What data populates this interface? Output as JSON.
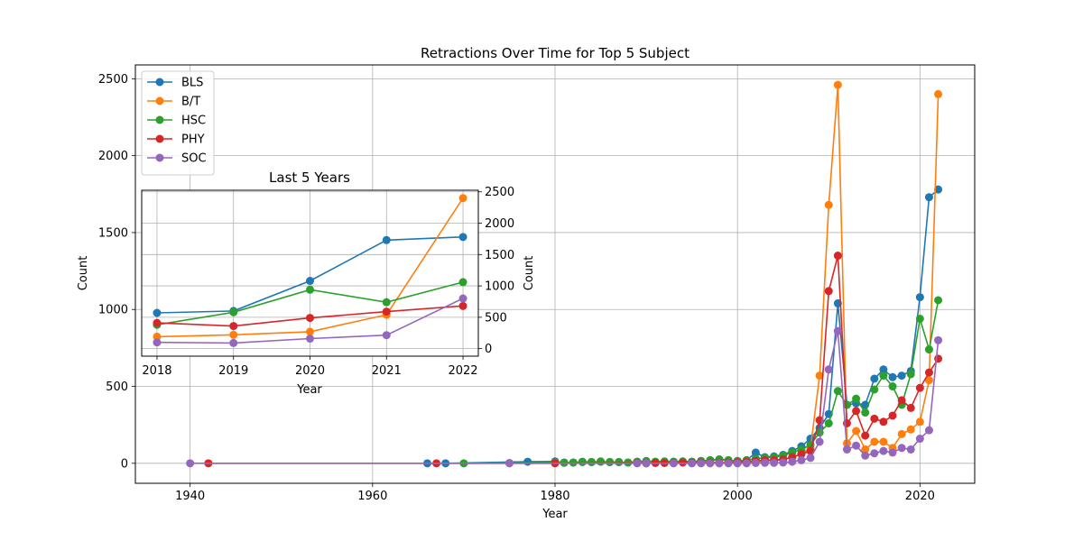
{
  "chart_data": [
    {
      "type": "line",
      "title": "Retractions Over Time for Top 5 Subject",
      "xlabel": "Year",
      "ylabel": "Count",
      "xlim": [
        1934,
        2026
      ],
      "ylim": [
        -130,
        2590
      ],
      "xticks": [
        1940,
        1960,
        1980,
        2000,
        2020
      ],
      "yticks": [
        0,
        500,
        1000,
        1500,
        2000,
        2500
      ],
      "grid": true,
      "legend_position": "upper-left",
      "series": [
        {
          "name": "BLS",
          "color": "#1f77b4",
          "points": [
            [
              1966,
              0
            ],
            [
              1968,
              0
            ],
            [
              1977,
              10
            ],
            [
              1980,
              12
            ],
            [
              1981,
              5
            ],
            [
              1982,
              5
            ],
            [
              1983,
              10
            ],
            [
              1984,
              8
            ],
            [
              1985,
              12
            ],
            [
              1986,
              8
            ],
            [
              1987,
              8
            ],
            [
              1988,
              5
            ],
            [
              1989,
              10
            ],
            [
              1990,
              15
            ],
            [
              1991,
              10
            ],
            [
              1992,
              12
            ],
            [
              1993,
              10
            ],
            [
              1994,
              12
            ],
            [
              1995,
              10
            ],
            [
              1996,
              15
            ],
            [
              1997,
              20
            ],
            [
              1998,
              25
            ],
            [
              1999,
              20
            ],
            [
              2000,
              15
            ],
            [
              2001,
              20
            ],
            [
              2002,
              70
            ],
            [
              2003,
              40
            ],
            [
              2004,
              45
            ],
            [
              2005,
              55
            ],
            [
              2006,
              80
            ],
            [
              2007,
              110
            ],
            [
              2008,
              160
            ],
            [
              2009,
              230
            ],
            [
              2010,
              320
            ],
            [
              2011,
              1040
            ],
            [
              2012,
              380
            ],
            [
              2013,
              390
            ],
            [
              2014,
              380
            ],
            [
              2015,
              550
            ],
            [
              2016,
              610
            ],
            [
              2017,
              560
            ],
            [
              2018,
              570
            ],
            [
              2019,
              600
            ],
            [
              2020,
              1080
            ],
            [
              2021,
              1730
            ],
            [
              2022,
              1780
            ]
          ]
        },
        {
          "name": "B/T",
          "color": "#ff7f0e",
          "points": [
            [
              1980,
              5
            ],
            [
              1990,
              3
            ],
            [
              1995,
              5
            ],
            [
              2000,
              5
            ],
            [
              2002,
              10
            ],
            [
              2003,
              15
            ],
            [
              2004,
              20
            ],
            [
              2005,
              25
            ],
            [
              2006,
              40
            ],
            [
              2007,
              60
            ],
            [
              2008,
              100
            ],
            [
              2009,
              570
            ],
            [
              2010,
              1680
            ],
            [
              2011,
              2460
            ],
            [
              2012,
              130
            ],
            [
              2013,
              210
            ],
            [
              2014,
              90
            ],
            [
              2015,
              140
            ],
            [
              2016,
              140
            ],
            [
              2017,
              100
            ],
            [
              2018,
              190
            ],
            [
              2019,
              220
            ],
            [
              2020,
              270
            ],
            [
              2021,
              540
            ],
            [
              2022,
              2400
            ]
          ]
        },
        {
          "name": "HSC",
          "color": "#2ca02c",
          "points": [
            [
              1970,
              0
            ],
            [
              1975,
              2
            ],
            [
              1980,
              5
            ],
            [
              1981,
              3
            ],
            [
              1982,
              5
            ],
            [
              1983,
              8
            ],
            [
              1984,
              8
            ],
            [
              1985,
              10
            ],
            [
              1986,
              8
            ],
            [
              1987,
              8
            ],
            [
              1988,
              5
            ],
            [
              1989,
              10
            ],
            [
              1990,
              12
            ],
            [
              1991,
              10
            ],
            [
              1992,
              10
            ],
            [
              1993,
              10
            ],
            [
              1994,
              12
            ],
            [
              1995,
              10
            ],
            [
              1996,
              15
            ],
            [
              1997,
              20
            ],
            [
              1998,
              25
            ],
            [
              1999,
              20
            ],
            [
              2000,
              15
            ],
            [
              2001,
              20
            ],
            [
              2002,
              30
            ],
            [
              2003,
              35
            ],
            [
              2004,
              40
            ],
            [
              2005,
              50
            ],
            [
              2006,
              70
            ],
            [
              2007,
              90
            ],
            [
              2008,
              120
            ],
            [
              2009,
              200
            ],
            [
              2010,
              260
            ],
            [
              2011,
              470
            ],
            [
              2012,
              380
            ],
            [
              2013,
              420
            ],
            [
              2014,
              330
            ],
            [
              2015,
              480
            ],
            [
              2016,
              570
            ],
            [
              2017,
              500
            ],
            [
              2018,
              380
            ],
            [
              2019,
              580
            ],
            [
              2020,
              940
            ],
            [
              2021,
              740
            ],
            [
              2022,
              1060
            ]
          ]
        },
        {
          "name": "PHY",
          "color": "#d62728",
          "points": [
            [
              1942,
              0
            ],
            [
              1967,
              0
            ],
            [
              1980,
              0
            ],
            [
              1989,
              3
            ],
            [
              1990,
              0
            ],
            [
              1991,
              2
            ],
            [
              1992,
              2
            ],
            [
              1993,
              3
            ],
            [
              1994,
              5
            ],
            [
              1995,
              5
            ],
            [
              1996,
              5
            ],
            [
              1997,
              5
            ],
            [
              1998,
              5
            ],
            [
              1999,
              5
            ],
            [
              2000,
              8
            ],
            [
              2001,
              10
            ],
            [
              2002,
              15
            ],
            [
              2003,
              20
            ],
            [
              2004,
              20
            ],
            [
              2005,
              25
            ],
            [
              2006,
              40
            ],
            [
              2007,
              60
            ],
            [
              2008,
              80
            ],
            [
              2009,
              280
            ],
            [
              2010,
              1120
            ],
            [
              2011,
              1350
            ],
            [
              2012,
              260
            ],
            [
              2013,
              340
            ],
            [
              2014,
              180
            ],
            [
              2015,
              290
            ],
            [
              2016,
              270
            ],
            [
              2017,
              310
            ],
            [
              2018,
              410
            ],
            [
              2019,
              360
            ],
            [
              2020,
              490
            ],
            [
              2021,
              590
            ],
            [
              2022,
              680
            ]
          ]
        },
        {
          "name": "SOC",
          "color": "#9467bd",
          "points": [
            [
              1940,
              0
            ],
            [
              1975,
              0
            ],
            [
              1989,
              0
            ],
            [
              1990,
              0
            ],
            [
              1993,
              0
            ],
            [
              1995,
              0
            ],
            [
              1996,
              0
            ],
            [
              1997,
              0
            ],
            [
              1998,
              0
            ],
            [
              1999,
              0
            ],
            [
              2000,
              0
            ],
            [
              2001,
              0
            ],
            [
              2002,
              2
            ],
            [
              2003,
              3
            ],
            [
              2004,
              3
            ],
            [
              2005,
              5
            ],
            [
              2006,
              10
            ],
            [
              2007,
              20
            ],
            [
              2008,
              35
            ],
            [
              2009,
              140
            ],
            [
              2010,
              610
            ],
            [
              2011,
              860
            ],
            [
              2012,
              90
            ],
            [
              2013,
              115
            ],
            [
              2014,
              50
            ],
            [
              2015,
              65
            ],
            [
              2016,
              80
            ],
            [
              2017,
              70
            ],
            [
              2018,
              100
            ],
            [
              2019,
              90
            ],
            [
              2020,
              160
            ],
            [
              2021,
              215
            ],
            [
              2022,
              800
            ]
          ]
        }
      ]
    },
    {
      "type": "line",
      "title": "Last 5 Years",
      "xlabel": "Year",
      "ylabel": "Count",
      "x": [
        2018,
        2019,
        2020,
        2021,
        2022
      ],
      "xlim": [
        2017.8,
        2022.2
      ],
      "ylim": [
        -120,
        2525
      ],
      "yticks": [
        0,
        500,
        1000,
        1500,
        2000,
        2500
      ],
      "y_axis_side": "right",
      "grid": true,
      "series": [
        {
          "name": "BLS",
          "color": "#1f77b4",
          "values": [
            570,
            600,
            1080,
            1730,
            1780
          ]
        },
        {
          "name": "B/T",
          "color": "#ff7f0e",
          "values": [
            190,
            220,
            270,
            540,
            2400
          ]
        },
        {
          "name": "HSC",
          "color": "#2ca02c",
          "values": [
            380,
            580,
            940,
            740,
            1060
          ]
        },
        {
          "name": "PHY",
          "color": "#d62728",
          "values": [
            410,
            360,
            490,
            590,
            680
          ]
        },
        {
          "name": "SOC",
          "color": "#9467bd",
          "values": [
            100,
            90,
            160,
            215,
            800
          ]
        }
      ]
    }
  ]
}
